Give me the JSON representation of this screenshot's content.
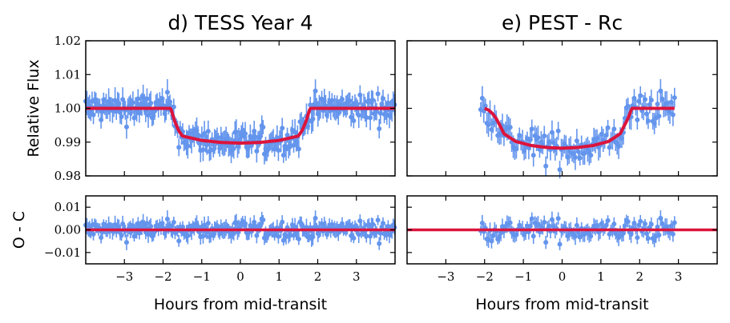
{
  "colors": {
    "data": "#6495ED",
    "model": "#DC143C",
    "frame": "#000000"
  },
  "chart_data": [
    {
      "type": "scatter",
      "panel": "d",
      "title": "d) TESS Year 4",
      "xlabel": "Hours from mid-transit",
      "ylabel": "Relative Flux",
      "xlim": [
        -4,
        4
      ],
      "ylim": [
        0.98,
        1.02
      ],
      "xticks": [
        -3,
        -2,
        -1,
        0,
        1,
        2,
        3
      ],
      "xtick_labels": [
        "−3",
        "−2",
        "−1",
        "0",
        "1",
        "2",
        "3"
      ],
      "yticks": [
        0.98,
        0.99,
        1.0,
        1.01,
        1.02
      ],
      "ytick_labels": [
        "0.98",
        "0.99",
        "1.00",
        "1.01",
        "1.02"
      ],
      "observations": {
        "x_range": [
          -4.0,
          4.0
        ],
        "spacing_hours": 0.033,
        "typical_error": 0.003,
        "scatter": 0.003
      },
      "model": {
        "name": "transit model",
        "x": [
          -4.0,
          -1.8,
          -1.7,
          -1.6,
          -1.5,
          -1.0,
          -0.5,
          0.0,
          0.5,
          1.0,
          1.5,
          1.6,
          1.7,
          1.8,
          4.0
        ],
        "y": [
          1.0,
          1.0,
          0.9962,
          0.9935,
          0.9918,
          0.9905,
          0.9899,
          0.9897,
          0.9899,
          0.9905,
          0.9918,
          0.9935,
          0.9962,
          1.0,
          1.0
        ]
      },
      "residuals": {
        "ylabel": "O - C",
        "ylim": [
          -0.015,
          0.015
        ],
        "yticks": [
          -0.01,
          0.0,
          0.01
        ],
        "ytick_labels": [
          "−0.01",
          "0.00",
          "0.01"
        ],
        "zero_line": 0.0
      }
    },
    {
      "type": "scatter",
      "panel": "e",
      "title": "e) PEST - Rc",
      "xlabel": "Hours from mid-transit",
      "ylabel": "",
      "xlim": [
        -4,
        4
      ],
      "ylim": [
        0.98,
        1.02
      ],
      "xticks": [
        -3,
        -2,
        -1,
        0,
        1,
        2,
        3
      ],
      "xtick_labels": [
        "−3",
        "−2",
        "−1",
        "0",
        "1",
        "2",
        "3"
      ],
      "yticks": [
        0.98,
        0.99,
        1.0,
        1.01,
        1.02
      ],
      "ytick_labels": [],
      "observations": {
        "x_range": [
          -2.1,
          2.9
        ],
        "spacing_hours": 0.04,
        "typical_error": 0.003,
        "scatter": 0.0035
      },
      "model": {
        "name": "transit model",
        "x": [
          -2.0,
          -1.9,
          -1.8,
          -1.7,
          -1.6,
          -1.5,
          -1.2,
          -0.8,
          -0.4,
          0.0,
          0.4,
          0.8,
          1.2,
          1.5,
          1.6,
          1.7,
          1.8,
          2.9
        ],
        "y": [
          1.0,
          0.9995,
          0.9985,
          0.997,
          0.9948,
          0.9925,
          0.9902,
          0.989,
          0.9884,
          0.9882,
          0.9884,
          0.989,
          0.9902,
          0.9925,
          0.9948,
          0.997,
          1.0,
          1.0
        ]
      },
      "residuals": {
        "ylabel": "",
        "ylim": [
          -0.015,
          0.015
        ],
        "yticks": [
          -0.01,
          0.0,
          0.01
        ],
        "ytick_labels": [],
        "zero_line": 0.0
      }
    }
  ]
}
